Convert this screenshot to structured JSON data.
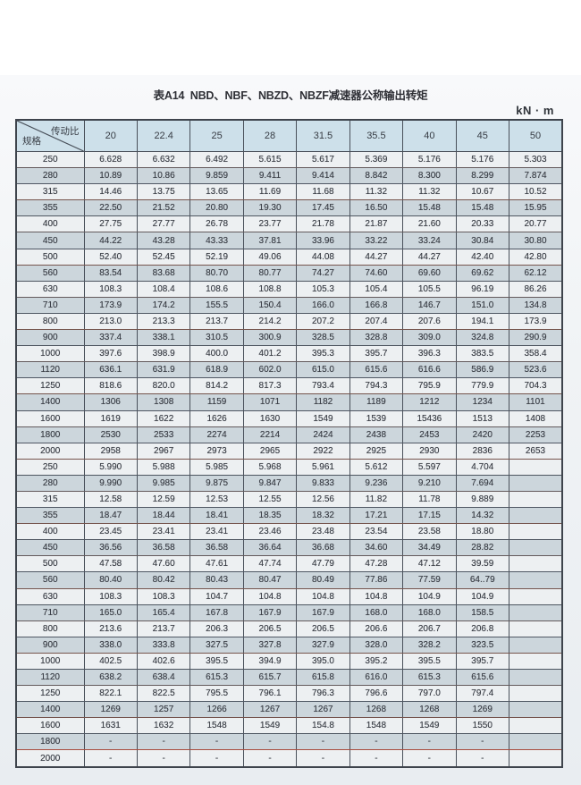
{
  "title": "表A14  NBD、NBF、NBZD、NBZF减速器公称输出转矩",
  "unit": "kN · m",
  "header": {
    "corner_top": "传动比",
    "corner_bottom": "规格",
    "ratios": [
      "20",
      "22.4",
      "25",
      "28",
      "31.5",
      "35.5",
      "40",
      "45",
      "50"
    ]
  },
  "sections": [
    {
      "rows": [
        {
          "spec": "250",
          "values": [
            "6.628",
            "6.632",
            "6.492",
            "5.615",
            "5.617",
            "5.369",
            "5.176",
            "5.176",
            "5.303"
          ]
        },
        {
          "spec": "280",
          "values": [
            "10.89",
            "10.86",
            "9.859",
            "9.411",
            "9.414",
            "8.842",
            "8.300",
            "8.299",
            "7.874"
          ]
        },
        {
          "spec": "315",
          "values": [
            "14.46",
            "13.75",
            "13.65",
            "11.69",
            "11.68",
            "11.32",
            "11.32",
            "10.67",
            "10.52"
          ]
        },
        {
          "spec": "355",
          "values": [
            "22.50",
            "21.52",
            "20.80",
            "19.30",
            "17.45",
            "16.50",
            "15.48",
            "15.48",
            "15.95"
          ]
        },
        {
          "spec": "400",
          "values": [
            "27.75",
            "27.77",
            "26.78",
            "23.77",
            "21.78",
            "21.87",
            "21.60",
            "20.33",
            "20.77"
          ]
        },
        {
          "spec": "450",
          "values": [
            "44.22",
            "43.28",
            "43.33",
            "37.81",
            "33.96",
            "33.22",
            "33.24",
            "30.84",
            "30.80"
          ]
        },
        {
          "spec": "500",
          "values": [
            "52.40",
            "52.45",
            "52.19",
            "49.06",
            "44.08",
            "44.27",
            "44.27",
            "42.40",
            "42.80"
          ]
        },
        {
          "spec": "560",
          "values": [
            "83.54",
            "83.68",
            "80.70",
            "80.77",
            "74.27",
            "74.60",
            "69.60",
            "69.62",
            "62.12"
          ]
        },
        {
          "spec": "630",
          "values": [
            "108.3",
            "108.4",
            "108.6",
            "108.8",
            "105.3",
            "105.4",
            "105.5",
            "96.19",
            "86.26"
          ]
        },
        {
          "spec": "710",
          "values": [
            "173.9",
            "174.2",
            "155.5",
            "150.4",
            "166.0",
            "166.8",
            "146.7",
            "151.0",
            "134.8"
          ]
        },
        {
          "spec": "800",
          "values": [
            "213.0",
            "213.3",
            "213.7",
            "214.2",
            "207.2",
            "207.4",
            "207.6",
            "194.1",
            "173.9"
          ]
        },
        {
          "spec": "900",
          "values": [
            "337.4",
            "338.1",
            "310.5",
            "300.9",
            "328.5",
            "328.8",
            "309.0",
            "324.8",
            "290.9"
          ]
        },
        {
          "spec": "1000",
          "values": [
            "397.6",
            "398.9",
            "400.0",
            "401.2",
            "395.3",
            "395.7",
            "396.3",
            "383.5",
            "358.4"
          ]
        },
        {
          "spec": "1120",
          "values": [
            "636.1",
            "631.9",
            "618.9",
            "602.0",
            "615.0",
            "615.6",
            "616.6",
            "586.9",
            "523.6"
          ]
        },
        {
          "spec": "1250",
          "values": [
            "818.6",
            "820.0",
            "814.2",
            "817.3",
            "793.4",
            "794.3",
            "795.9",
            "779.9",
            "704.3"
          ]
        },
        {
          "spec": "1400",
          "values": [
            "1306",
            "1308",
            "1159",
            "1071",
            "1182",
            "1189",
            "1212",
            "1234",
            "1101"
          ]
        },
        {
          "spec": "1600",
          "values": [
            "1619",
            "1622",
            "1626",
            "1630",
            "1549",
            "1539",
            "15436",
            "1513",
            "1408"
          ]
        },
        {
          "spec": "1800",
          "values": [
            "2530",
            "2533",
            "2274",
            "2214",
            "2424",
            "2438",
            "2453",
            "2420",
            "2253"
          ]
        },
        {
          "spec": "2000",
          "values": [
            "2958",
            "2967",
            "2973",
            "2965",
            "2922",
            "2925",
            "2930",
            "2836",
            "2653"
          ]
        }
      ]
    },
    {
      "rows": [
        {
          "spec": "250",
          "values": [
            "5.990",
            "5.988",
            "5.985",
            "5.968",
            "5.961",
            "5.612",
            "5.597",
            "4.704",
            ""
          ]
        },
        {
          "spec": "280",
          "values": [
            "9.990",
            "9.985",
            "9.875",
            "9.847",
            "9.833",
            "9.236",
            "9.210",
            "7.694",
            ""
          ]
        },
        {
          "spec": "315",
          "values": [
            "12.58",
            "12.59",
            "12.53",
            "12.55",
            "12.56",
            "11.82",
            "11.78",
            "9.889",
            ""
          ]
        },
        {
          "spec": "355",
          "values": [
            "18.47",
            "18.44",
            "18.41",
            "18.35",
            "18.32",
            "17.21",
            "17.15",
            "14.32",
            ""
          ]
        },
        {
          "spec": "400",
          "values": [
            "23.45",
            "23.41",
            "23.41",
            "23.46",
            "23.48",
            "23.54",
            "23.58",
            "18.80",
            ""
          ]
        },
        {
          "spec": "450",
          "values": [
            "36.56",
            "36.58",
            "36.58",
            "36.64",
            "36.68",
            "34.60",
            "34.49",
            "28.82",
            ""
          ]
        },
        {
          "spec": "500",
          "values": [
            "47.58",
            "47.60",
            "47.61",
            "47.74",
            "47.79",
            "47.28",
            "47.12",
            "39.59",
            ""
          ]
        },
        {
          "spec": "560",
          "values": [
            "80.40",
            "80.42",
            "80.43",
            "80.47",
            "80.49",
            "77.86",
            "77.59",
            "64..79",
            ""
          ]
        },
        {
          "spec": "630",
          "values": [
            "108.3",
            "108.3",
            "104.7",
            "104.8",
            "104.8",
            "104.8",
            "104.9",
            "104.9",
            ""
          ]
        },
        {
          "spec": "710",
          "values": [
            "165.0",
            "165.4",
            "167.8",
            "167.9",
            "167.9",
            "168.0",
            "168.0",
            "158.5",
            ""
          ]
        },
        {
          "spec": "800",
          "values": [
            "213.6",
            "213.7",
            "206.3",
            "206.5",
            "206.5",
            "206.6",
            "206.7",
            "206.8",
            ""
          ]
        },
        {
          "spec": "900",
          "values": [
            "338.0",
            "333.8",
            "327.5",
            "327.8",
            "327.9",
            "328.0",
            "328.2",
            "323.5",
            ""
          ]
        },
        {
          "spec": "1000",
          "values": [
            "402.5",
            "402.6",
            "395.5",
            "394.9",
            "395.0",
            "395.2",
            "395.5",
            "395.7",
            ""
          ]
        },
        {
          "spec": "1120",
          "values": [
            "638.2",
            "638.4",
            "615.3",
            "615.7",
            "615.8",
            "616.0",
            "615.3",
            "615.6",
            ""
          ]
        },
        {
          "spec": "1250",
          "values": [
            "822.1",
            "822.5",
            "795.5",
            "796.1",
            "796.3",
            "796.6",
            "797.0",
            "797.4",
            ""
          ]
        },
        {
          "spec": "1400",
          "values": [
            "1269",
            "1257",
            "1266",
            "1267",
            "1267",
            "1268",
            "1268",
            "1269",
            ""
          ]
        },
        {
          "spec": "1600",
          "values": [
            "1631",
            "1632",
            "1548",
            "1549",
            "154.8",
            "1548",
            "1549",
            "1550",
            ""
          ]
        },
        {
          "spec": "1800",
          "values": [
            "-",
            "-",
            "-",
            "-",
            "-",
            "-",
            "-",
            "-",
            ""
          ]
        },
        {
          "spec": "2000",
          "values": [
            "-",
            "-",
            "-",
            "-",
            "-",
            "-",
            "-",
            "-",
            ""
          ]
        }
      ]
    }
  ],
  "style": {
    "header_bg": "#cde0ea",
    "row_light_bg": "#edf0f2",
    "row_dark_bg": "#ccd6dc",
    "border_colors": [
      "#635a5c",
      "#4f5763",
      "#75544d",
      "#4d5560"
    ],
    "red_border": "#a84b3d"
  }
}
